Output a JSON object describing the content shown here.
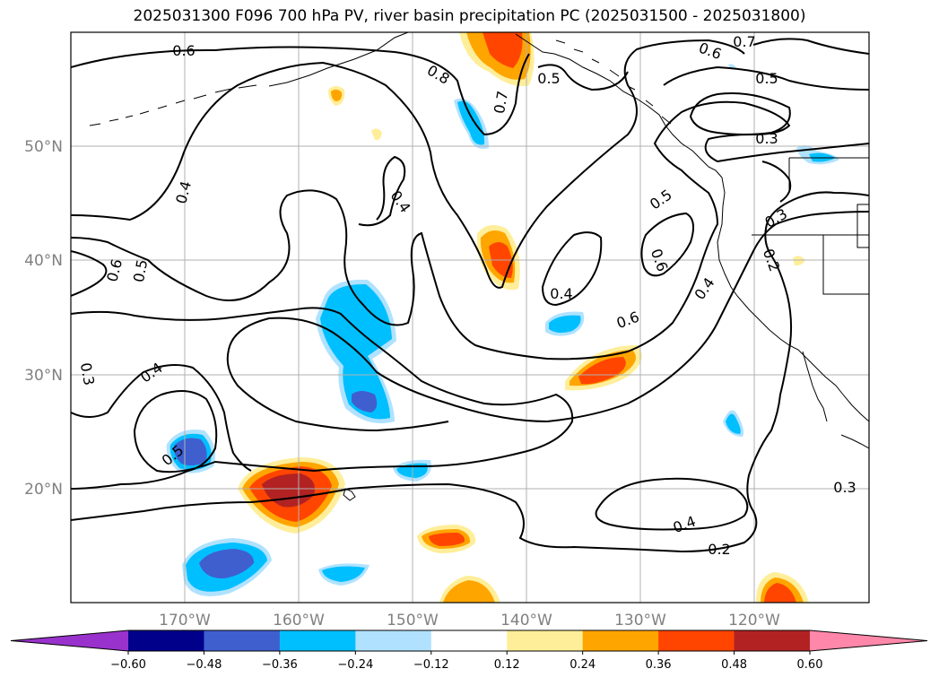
{
  "title": "2025031300 F096 700 hPa PV, river basin precipitation PC (2025031500 - 2025031800)",
  "map": {
    "lon_labels": [
      "170°W",
      "160°W",
      "150°W",
      "140°W",
      "130°W",
      "120°W"
    ],
    "lat_labels": [
      "50°N",
      "40°N",
      "30°N",
      "20°N"
    ],
    "contour_labels": [
      "0.6",
      "0.7",
      "0.8",
      "0.7",
      "0.5",
      "0.6",
      "0.5",
      "0.3",
      "0.4",
      "0.4",
      "0.5",
      "0.6",
      "0.2",
      "0.3",
      "0.6",
      "0.5",
      "0.4",
      "0.6",
      "0.4",
      "0.3",
      "0.4",
      "0.5",
      "0.4",
      "0.2",
      "0.3"
    ]
  },
  "colorbar": {
    "ticks": [
      "−0.60",
      "−0.48",
      "−0.36",
      "−0.24",
      "−0.12",
      "0.12",
      "0.24",
      "0.36",
      "0.48",
      "0.60"
    ],
    "colors": [
      "#9932cc",
      "#00008b",
      "#3f5fcf",
      "#00bfff",
      "#b0e2ff",
      "#ffffff",
      "#ffee99",
      "#ffa500",
      "#ff4500",
      "#b22222",
      "#ff88aa"
    ]
  }
}
